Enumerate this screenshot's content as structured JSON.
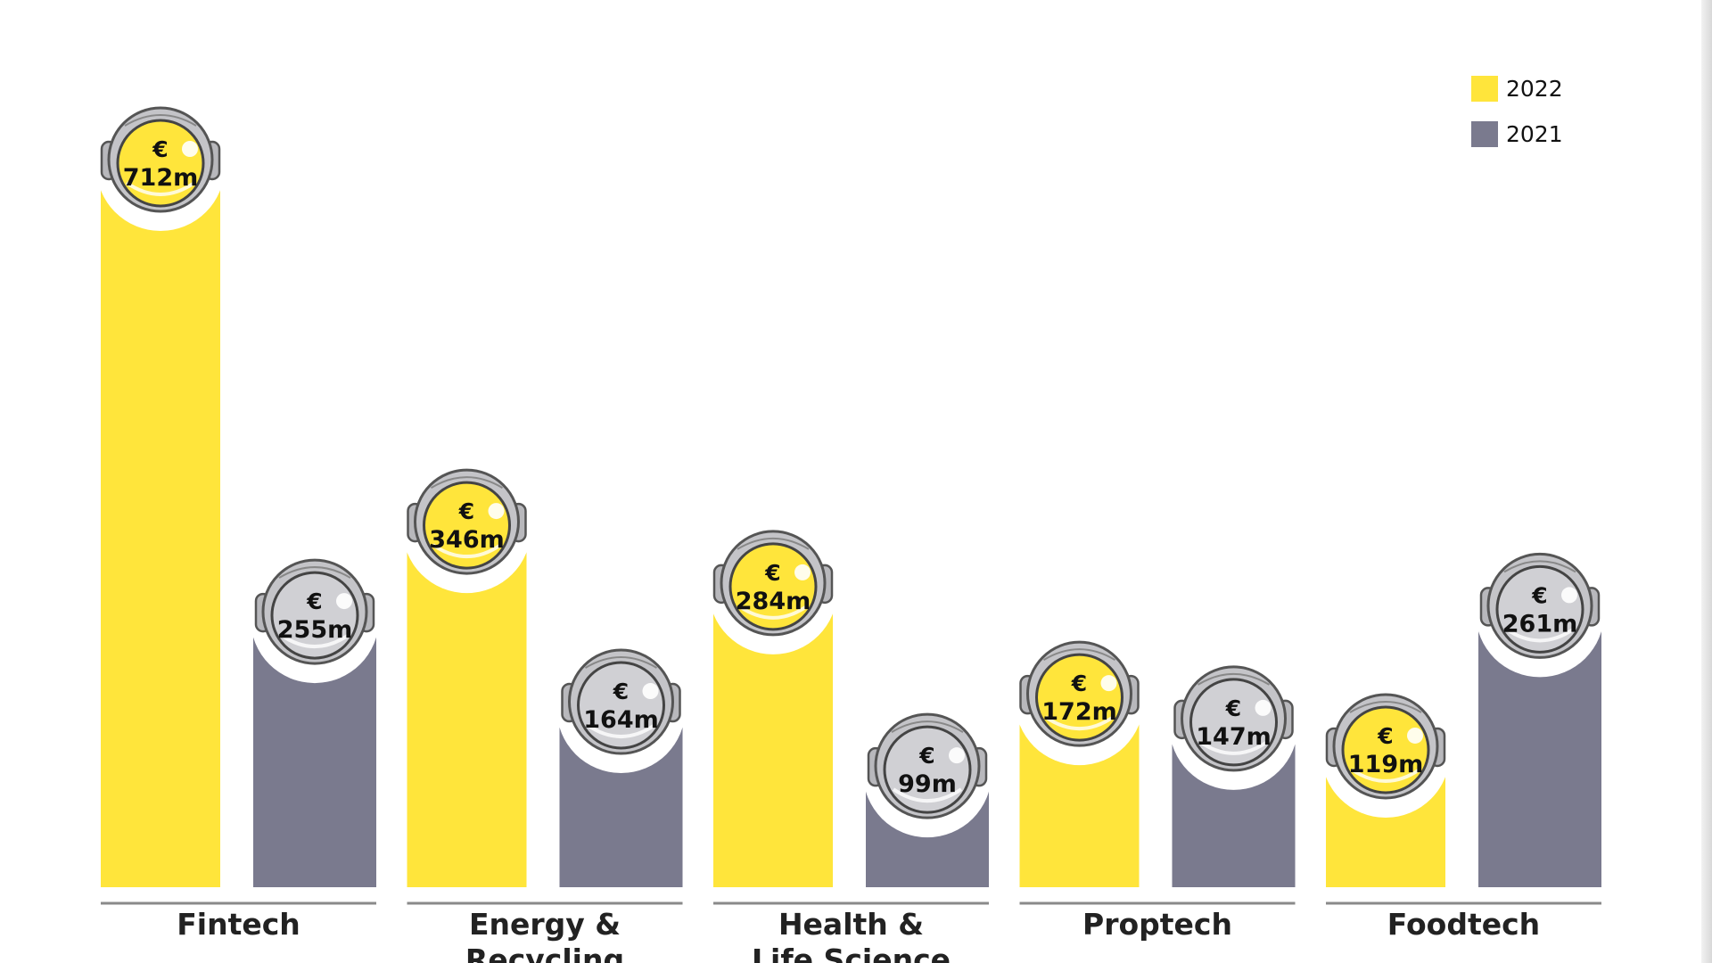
{
  "chart_data": {
    "type": "bar",
    "title": "",
    "xlabel": "",
    "ylabel": "",
    "ylim": [
      0,
      712
    ],
    "grid": false,
    "legend_placement": "top-right",
    "categories": [
      [
        "Fintech"
      ],
      [
        "Energy &",
        "Recycling"
      ],
      [
        "Health &",
        "Life Science"
      ],
      [
        "Proptech"
      ],
      [
        "Foodtech"
      ]
    ],
    "series": [
      {
        "name": "2022",
        "color": "#FFE53B",
        "values": [
          712,
          346,
          284,
          172,
          119
        ],
        "labels": [
          "712m",
          "346m",
          "284m",
          "172m",
          "119m"
        ]
      },
      {
        "name": "2021",
        "color": "#7A7A8E",
        "values": [
          255,
          164,
          99,
          147,
          261
        ],
        "labels": [
          "255m",
          "164m",
          "99m",
          "147m",
          "261m"
        ]
      }
    ],
    "currency_symbol": "€",
    "icon": "astronaut-helmet-icon"
  }
}
